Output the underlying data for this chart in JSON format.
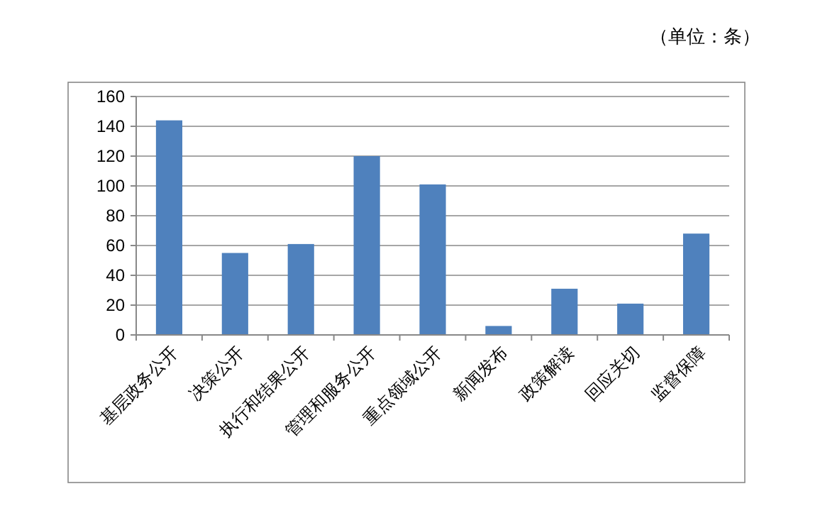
{
  "chart_data": {
    "type": "bar",
    "annotations": [
      "（单位：条）"
    ],
    "categories": [
      "基层政务公开",
      "决策公开",
      "执行和结果公开",
      "管理和服务公开",
      "重点领域公开",
      "新闻发布",
      "政策解读",
      "回应关切",
      "监督保障"
    ],
    "values": [
      144,
      55,
      61,
      120,
      101,
      6,
      31,
      21,
      68
    ],
    "color": "#4f81bd",
    "ylim": [
      0,
      160
    ],
    "yticks": [
      0,
      20,
      40,
      60,
      80,
      100,
      120,
      140,
      160
    ],
    "grid": "y"
  }
}
